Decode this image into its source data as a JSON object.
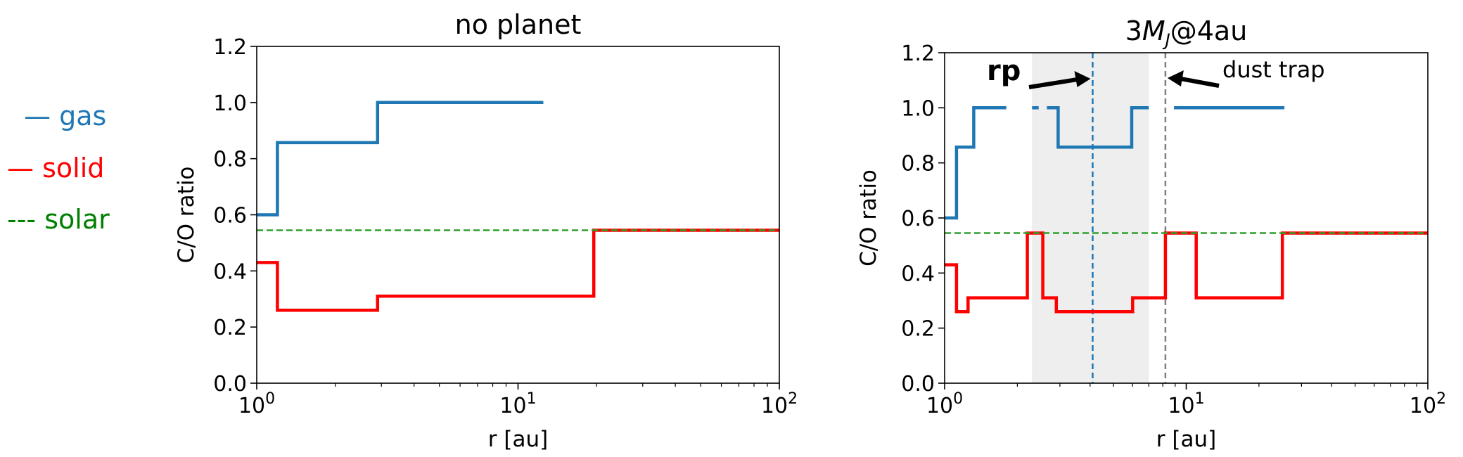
{
  "legend": {
    "items": [
      {
        "symbol": "—",
        "label": "gas",
        "color": "#1f77b4"
      },
      {
        "symbol": "—",
        "label": "solid",
        "color": "#ff0000"
      },
      {
        "symbol": "---",
        "label": "solar",
        "color": "#008000"
      }
    ]
  },
  "colors": {
    "gas": "#1f77b4",
    "solid": "#ff0000",
    "solar": "#2ca02c",
    "planet_line": "#1f77b4",
    "trap_line": "#808080",
    "gap_shade": "#e8e8e8",
    "axis": "#000000"
  },
  "chart_data": [
    {
      "type": "line",
      "title": "no planet",
      "xlabel": "r [au]",
      "ylabel": "C/O ratio",
      "xscale": "log",
      "xlim": [
        1,
        100
      ],
      "ylim": [
        0,
        1.2
      ],
      "xticks": [
        "10^0",
        "10^1",
        "10^2"
      ],
      "yticks": [
        "0.0",
        "0.2",
        "0.4",
        "0.6",
        "0.8",
        "1.0",
        "1.2"
      ],
      "series": [
        {
          "key": "gas",
          "step": true,
          "x": [
            1.0,
            1.2,
            1.2,
            2.9,
            2.9,
            12.5
          ],
          "y": [
            0.6,
            0.6,
            0.857,
            0.857,
            1.0,
            1.0
          ]
        },
        {
          "key": "solid",
          "step": true,
          "x": [
            1.0,
            1.2,
            1.2,
            2.9,
            2.9,
            19.5,
            19.5,
            100
          ],
          "y": [
            0.43,
            0.43,
            0.26,
            0.26,
            0.31,
            0.31,
            0.545,
            0.545
          ]
        },
        {
          "key": "solar",
          "dashed": true,
          "x": [
            1,
            100
          ],
          "y": [
            0.545,
            0.545
          ]
        }
      ]
    },
    {
      "type": "line",
      "title": "3M_J@4au",
      "title_parts": [
        "3",
        "M",
        "J",
        "@4au"
      ],
      "xlabel": "r [au]",
      "ylabel": "C/O ratio",
      "xscale": "log",
      "xlim": [
        1,
        100
      ],
      "ylim": [
        0,
        1.2
      ],
      "xticks": [
        "10^0",
        "10^1",
        "10^2"
      ],
      "yticks": [
        "0.0",
        "0.2",
        "0.4",
        "0.6",
        "0.8",
        "1.0",
        "1.2"
      ],
      "shaded_band": [
        2.3,
        7.0
      ],
      "vlines": [
        {
          "key": "planet_line",
          "x": 4.1
        },
        {
          "key": "trap_line",
          "x": 8.2
        }
      ],
      "annotations": [
        {
          "text": "rp",
          "bold": true
        },
        {
          "text": "dust trap",
          "bold": false
        }
      ],
      "series": [
        {
          "key": "gas",
          "step": true,
          "segments": [
            {
              "x": [
                1.0,
                1.12,
                1.12,
                1.32,
                1.32,
                1.8
              ],
              "y": [
                0.6,
                0.6,
                0.857,
                0.857,
                1.0,
                1.0
              ]
            },
            {
              "x": [
                2.3,
                2.45
              ],
              "y": [
                1.0,
                1.0
              ]
            },
            {
              "x": [
                2.65,
                2.95,
                2.95,
                5.95,
                5.95,
                7.0
              ],
              "y": [
                1.0,
                1.0,
                0.857,
                0.857,
                1.0,
                1.0
              ]
            },
            {
              "x": [
                8.9,
                25.5
              ],
              "y": [
                1.0,
                1.0
              ]
            }
          ]
        },
        {
          "key": "solid",
          "step": true,
          "x": [
            1.0,
            1.12,
            1.12,
            1.25,
            1.25,
            1.35,
            1.35,
            2.2,
            2.2,
            2.55,
            2.55,
            2.9,
            2.9,
            6.0,
            6.0,
            8.2,
            8.2,
            11.0,
            11.0,
            25.0,
            25.0,
            100
          ],
          "y": [
            0.43,
            0.43,
            0.26,
            0.26,
            0.31,
            0.31,
            0.31,
            0.31,
            0.545,
            0.545,
            0.31,
            0.31,
            0.26,
            0.26,
            0.31,
            0.31,
            0.545,
            0.545,
            0.31,
            0.31,
            0.545,
            0.545
          ]
        },
        {
          "key": "solar",
          "dashed": true,
          "x": [
            1,
            100
          ],
          "y": [
            0.545,
            0.545
          ]
        }
      ]
    }
  ]
}
